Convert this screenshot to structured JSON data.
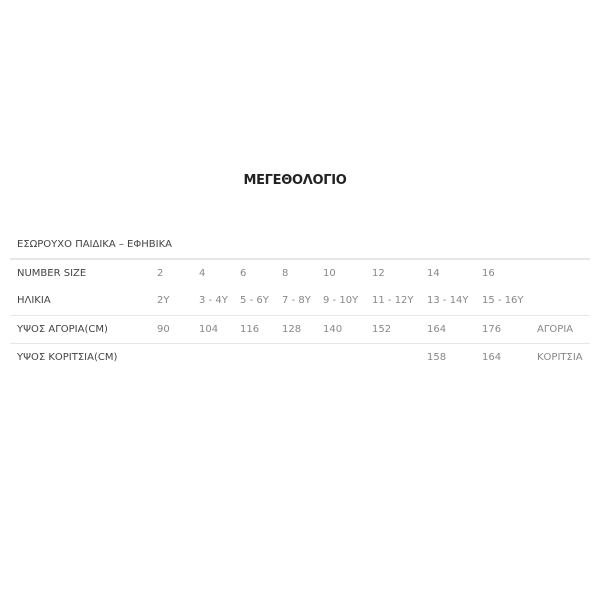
{
  "title": "ΜΕΓΕΘΟΛΟΓΙΟ",
  "table": {
    "caption": "ΕΣΩΡΟΥΧΟ ΠΑΙΔΙΚΑ – ΕΦΗΒΙΚΑ",
    "rows": [
      {
        "label": "NUMBER SIZE",
        "cells": [
          "2",
          "4",
          "6",
          "8",
          "10",
          "12",
          "14",
          "16",
          ""
        ]
      },
      {
        "label": "ΗΛΙΚΙΑ",
        "cells": [
          "2Y",
          "3 - 4Y",
          "5 - 6Y",
          "7 - 8Y",
          "9 - 10Y",
          "11 - 12Y",
          "13 - 14Y",
          "15 - 16Y",
          ""
        ]
      },
      {
        "label": "ΥΨΟΣ ΑΓΟΡΙΑ(CM)",
        "cells": [
          "90",
          "104",
          "116",
          "128",
          "140",
          "152",
          "164",
          "176",
          "ΑΓΟΡΙΑ"
        ]
      },
      {
        "label": "ΥΨΟΣ ΚΟΡΙΤΣΙΑ(CM)",
        "cells": [
          "",
          "",
          "",
          "",
          "",
          "",
          "158",
          "164",
          "ΚΟΡΙΤΣΙΑ"
        ]
      }
    ]
  }
}
